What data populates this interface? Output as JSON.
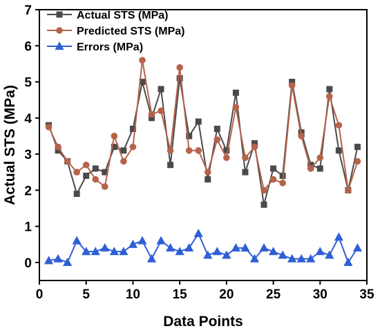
{
  "chart_data": {
    "type": "line",
    "xlabel": "Data Points",
    "ylabel": "Actual STS (MPa)",
    "xlim": [
      0,
      35
    ],
    "ylim": [
      -0.5,
      7
    ],
    "xticks": [
      0,
      5,
      10,
      15,
      20,
      25,
      30,
      35
    ],
    "yticks": [
      0,
      1,
      2,
      3,
      4,
      5,
      6,
      7
    ],
    "legend_position": "top-left",
    "grid": false,
    "x": [
      1,
      2,
      3,
      4,
      5,
      6,
      7,
      8,
      9,
      10,
      11,
      12,
      13,
      14,
      15,
      16,
      17,
      18,
      19,
      20,
      21,
      22,
      23,
      24,
      25,
      26,
      27,
      28,
      29,
      30,
      31,
      32,
      33,
      34
    ],
    "series": [
      {
        "name": "Actual STS (MPa)",
        "color": "#4a4a4a",
        "marker": "square",
        "values": [
          3.8,
          3.1,
          2.8,
          1.9,
          2.4,
          2.6,
          2.5,
          3.2,
          3.1,
          3.7,
          5.0,
          4.0,
          4.8,
          2.7,
          5.1,
          3.5,
          3.9,
          2.3,
          3.7,
          3.1,
          4.7,
          2.5,
          3.3,
          1.6,
          2.6,
          2.4,
          5.0,
          3.6,
          2.7,
          2.6,
          4.8,
          3.1,
          2.0,
          3.2
        ]
      },
      {
        "name": "Predicted STS (MPa)",
        "color": "#b5634a",
        "marker": "circle",
        "values": [
          3.75,
          3.2,
          2.8,
          2.5,
          2.7,
          2.3,
          2.1,
          3.5,
          2.8,
          3.2,
          5.6,
          4.1,
          4.2,
          3.1,
          5.4,
          3.1,
          3.1,
          2.5,
          3.4,
          2.9,
          4.3,
          2.9,
          3.2,
          2.0,
          2.3,
          2.2,
          4.9,
          3.5,
          2.6,
          2.9,
          4.6,
          3.8,
          2.0,
          2.8
        ]
      },
      {
        "name": "Errors (MPa)",
        "color": "#2f5fd6",
        "marker": "triangle",
        "values": [
          0.05,
          0.1,
          0.0,
          0.6,
          0.3,
          0.3,
          0.4,
          0.3,
          0.3,
          0.5,
          0.6,
          0.1,
          0.6,
          0.4,
          0.3,
          0.4,
          0.8,
          0.2,
          0.3,
          0.2,
          0.4,
          0.4,
          0.1,
          0.4,
          0.3,
          0.2,
          0.1,
          0.1,
          0.1,
          0.3,
          0.2,
          0.7,
          0.0,
          0.4
        ]
      }
    ]
  }
}
